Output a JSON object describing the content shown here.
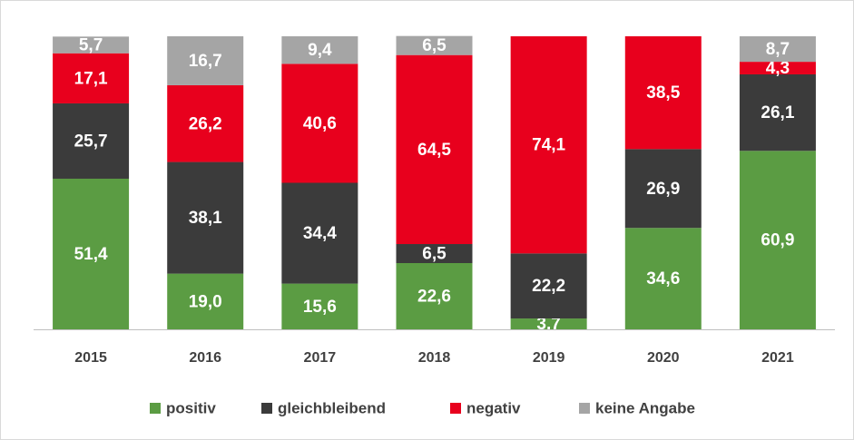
{
  "chart_data": {
    "type": "stacked-bar",
    "categories": [
      "2015",
      "2016",
      "2017",
      "2018",
      "2019",
      "2020",
      "2021"
    ],
    "ylim": [
      0,
      100
    ],
    "legend": "bottom",
    "series": [
      {
        "name": "positiv",
        "color": "#5b9c43",
        "values": [
          51.4,
          19.0,
          15.6,
          22.6,
          3.7,
          34.6,
          60.9
        ],
        "value_labels": [
          "51,4",
          "19,0",
          "15,6",
          "22,6",
          "3,7",
          "34,6",
          "60,9"
        ]
      },
      {
        "name": "gleichbleibend",
        "color": "#3b3b3b",
        "values": [
          25.7,
          38.1,
          34.4,
          6.5,
          22.2,
          26.9,
          26.1
        ],
        "value_labels": [
          "25,7",
          "38,1",
          "34,4",
          "6,5",
          "22,2",
          "26,9",
          "26,1"
        ]
      },
      {
        "name": "negativ",
        "color": "#e8001d",
        "values": [
          17.1,
          26.2,
          40.6,
          64.5,
          74.1,
          38.5,
          4.3
        ],
        "value_labels": [
          "17,1",
          "26,2",
          "40,6",
          "64,5",
          "74,1",
          "38,5",
          "4,3"
        ]
      },
      {
        "name": "keine Angabe",
        "color": "#a5a5a5",
        "values": [
          5.7,
          16.7,
          9.4,
          6.5,
          null,
          null,
          8.7
        ],
        "value_labels": [
          "5,7",
          "16,7",
          "9,4",
          "6,5",
          null,
          null,
          "8,7"
        ]
      }
    ]
  }
}
